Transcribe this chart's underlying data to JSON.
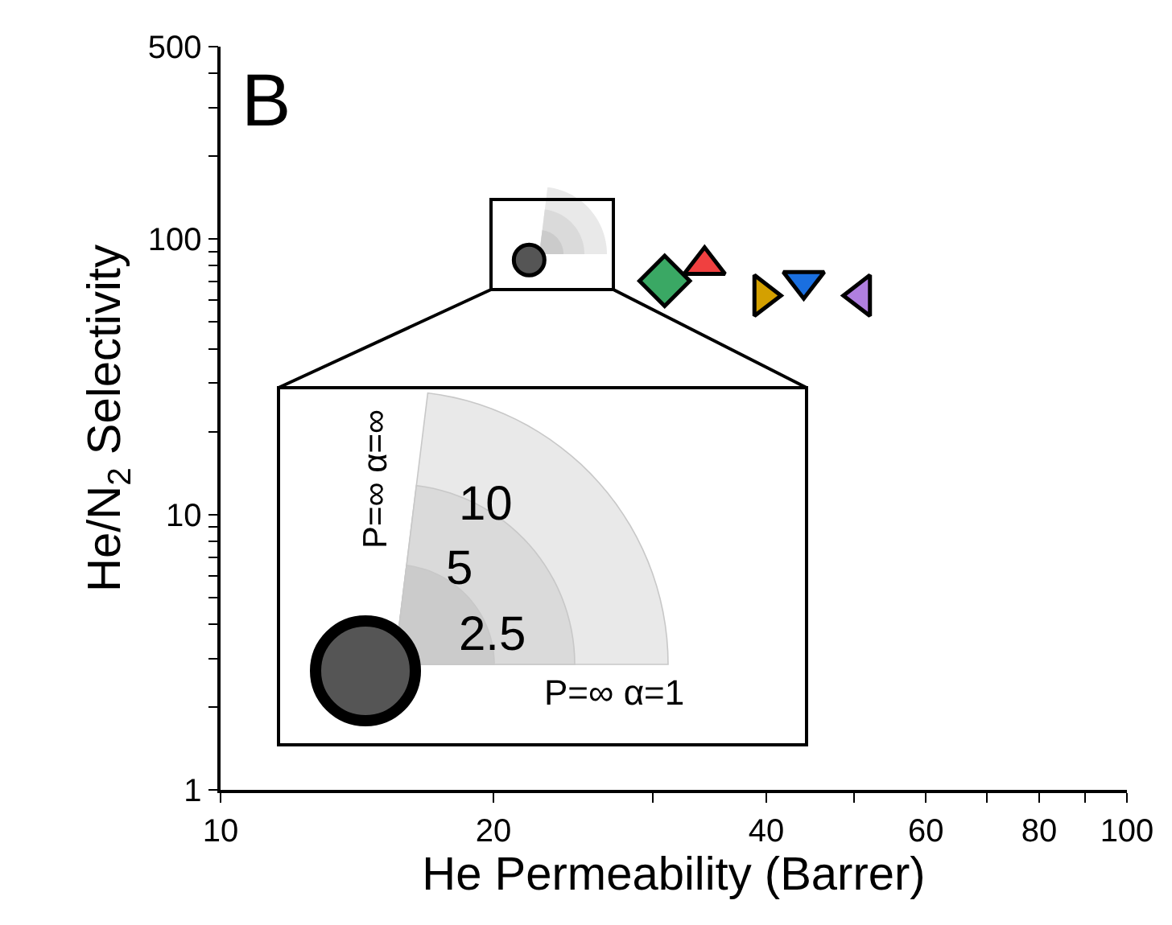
{
  "chart_data": {
    "type": "scatter",
    "xlabel": "He Permeability (Barrer)",
    "ylabel": "He/N$_{2}$ Selectivity",
    "log": "xy",
    "xlim": [
      10,
      100
    ],
    "xticks": [
      10,
      20,
      {
        "value": 30,
        "label": null
      },
      40,
      {
        "value": 50,
        "label": null
      },
      60,
      {
        "value": 70,
        "label": null
      },
      80,
      {
        "value": 90,
        "label": null
      },
      100
    ],
    "ylim": [
      1,
      500
    ],
    "yticks": [
      1,
      {
        "value": 2,
        "label": null
      },
      {
        "value": 3,
        "label": null
      },
      {
        "value": 4,
        "label": null
      },
      {
        "value": 5,
        "label": null
      },
      {
        "value": 6,
        "label": null
      },
      {
        "value": 7,
        "label": null
      },
      {
        "value": 8,
        "label": null
      },
      {
        "value": 9,
        "label": null
      },
      10,
      {
        "value": 20,
        "label": null
      },
      {
        "value": 30,
        "label": null
      },
      {
        "value": 40,
        "label": null
      },
      {
        "value": 50,
        "label": null
      },
      {
        "value": 60,
        "label": null
      },
      {
        "value": 70,
        "label": null
      },
      {
        "value": 80,
        "label": null
      },
      {
        "value": 90,
        "label": null
      },
      100,
      {
        "value": 200,
        "label": null
      },
      {
        "value": 300,
        "label": null
      },
      {
        "value": 400,
        "label": null
      },
      500
    ],
    "series": [
      {
        "x": [
          21.9
        ],
        "values": [
          84
        ],
        "color": "#555555",
        "marker": "circle"
      },
      {
        "x": [
          30.9
        ],
        "values": [
          70.5
        ],
        "color": "#3aa864",
        "marker": "diamond"
      },
      {
        "x": [
          34.2
        ],
        "values": [
          80.5
        ],
        "color": "#f04040",
        "marker": "triangle"
      },
      {
        "x": [
          39.7
        ],
        "values": [
          62.4
        ],
        "color": "#d4a000",
        "marker": "triangle-right"
      },
      {
        "x": [
          44.0
        ],
        "values": [
          70.5
        ],
        "color": "#1a6fe0",
        "marker": "triangle-down"
      },
      {
        "x": [
          50.9
        ],
        "values": [
          62.4
        ],
        "color": "#b07fe0",
        "marker": "triangle-left"
      }
    ],
    "annotations": [
      "B",
      "10",
      "5",
      "2.5",
      "P=∞ α=∞",
      "P=∞ α=1"
    ]
  }
}
